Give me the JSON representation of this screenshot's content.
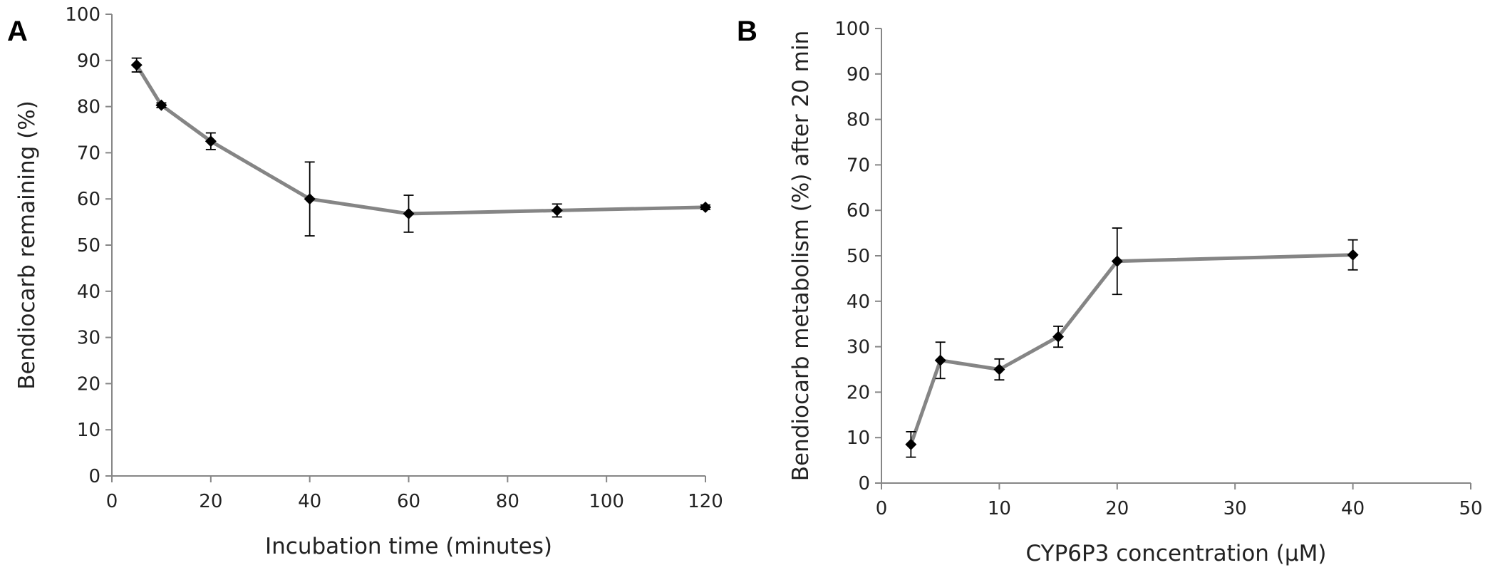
{
  "figure": {
    "panel_a_label": "A",
    "panel_b_label": "B"
  },
  "style": {
    "line_color": "#858585",
    "marker_color": "#000000",
    "axis_color": "#868686"
  },
  "chart_data": [
    {
      "type": "line",
      "panel": "A",
      "xlabel": "Incubation time (minutes)",
      "ylabel": "Bendiocarb remaining (%)",
      "xlim": [
        0,
        120
      ],
      "ylim": [
        0,
        100
      ],
      "xticks": [
        0,
        20,
        40,
        60,
        80,
        100,
        120
      ],
      "yticks": [
        0,
        10,
        20,
        30,
        40,
        50,
        60,
        70,
        80,
        90,
        100
      ],
      "grid": false,
      "marker": "diamond",
      "series": [
        {
          "x": [
            5,
            10,
            20,
            40,
            60,
            90,
            120
          ],
          "y": [
            89,
            80.3,
            72.5,
            60,
            56.8,
            57.5,
            58.2
          ],
          "error": [
            1.5,
            0.5,
            1.8,
            8,
            4,
            1.4,
            0.5
          ]
        }
      ]
    },
    {
      "type": "line",
      "panel": "B",
      "xlabel": "CYP6P3 concentration (μM)",
      "ylabel": "Bendiocarb metabolism (%) after 20 min",
      "xlim": [
        0,
        50
      ],
      "ylim": [
        0,
        100
      ],
      "xticks": [
        0,
        10,
        20,
        30,
        40,
        50
      ],
      "yticks": [
        0,
        10,
        20,
        30,
        40,
        50,
        60,
        70,
        80,
        90,
        100
      ],
      "grid": false,
      "marker": "diamond",
      "series": [
        {
          "x": [
            2.5,
            5,
            10,
            15,
            20,
            40
          ],
          "y": [
            8.5,
            27,
            25,
            32.2,
            48.8,
            50.2
          ],
          "error": [
            2.8,
            4,
            2.3,
            2.3,
            7.3,
            3.3
          ]
        }
      ]
    }
  ]
}
